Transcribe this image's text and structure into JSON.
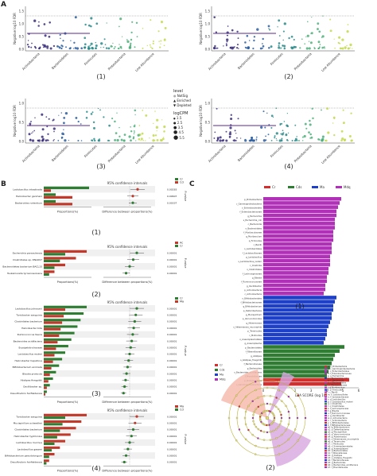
{
  "panel_letters": {
    "a": "A",
    "b": "B",
    "c": "C"
  },
  "manhattan": {
    "ylabel_nlog": "Negative log10 FDR",
    "ylabel_ngl": "Negative log10 FDR",
    "yticks_top": [
      "1.5",
      "1.0",
      "0.5",
      "0.0"
    ],
    "yticks_bottom": [
      "1.0",
      "0.5",
      "0.0"
    ],
    "xcats": [
      "Actinobacteria",
      "Bacteroidetes",
      "Firmicutes",
      "Proteobacteria",
      "Low Abundance"
    ],
    "sublabels": [
      "(1)",
      "(2)",
      "(3)",
      "(4)"
    ],
    "legend": {
      "level_title": "level",
      "levels": [
        "NotSig",
        "Enriched",
        "Depleted"
      ],
      "cpm_title": "logCPM",
      "cpm_values": [
        "1.5",
        "2.5",
        "3.5",
        "4.5",
        "5.5"
      ]
    }
  },
  "stamp": {
    "ci_title": "95% confidence intervals",
    "xlabel_left": "Proportions(%)",
    "xlabel_right": "Difference between proportions(%)",
    "pvalue_label": "P-value",
    "colors": {
      "red": "#c0392b",
      "green": "#2e7d32"
    },
    "plots": [
      {
        "sublabel": "(1)",
        "legend": [
          "Cr",
          "Cd"
        ],
        "features": [
          "Lactobacillus intestinalis",
          "Helicobacter ganmani",
          "Bacteroides rodentium"
        ],
        "pvalues": [
          "0.00283",
          "0.00607",
          "0.00337"
        ]
      },
      {
        "sublabel": "(2)",
        "legend": [
          "Ac",
          "Cr"
        ],
        "features": [
          "Escherichia paraoulensis",
          "Clostridiales sp. DNA097",
          "Bacteroidetes bacterium BACL15",
          "Tsukamurella tyrosinosolvens"
        ],
        "pvalues": [
          "0.00001",
          "0.00001",
          "0.00001",
          "0.00001"
        ]
      },
      {
        "sublabel": "(3)",
        "legend": [
          "Cr",
          "Ma"
        ],
        "features": [
          "Lactobacillus johnsonii",
          "Turicibacter sanguinis",
          "Clostridiales bacterium",
          "Helicobacter bilis",
          "Ruminococcus faecis",
          "Bacteroides acidifaciens",
          "Erysipelotrichaceae",
          "Lactobacillus reuteri",
          "Helicobacter hepaticus",
          "Bifidobacterium animalis",
          "Blautia producta",
          "Alistipes finegoldii",
          "Oscillibacter sp.",
          "Desulfovibrio fairfieldensis"
        ],
        "pvalues": [
          "0.00001",
          "0.00001",
          "0.00001",
          "0.00001",
          "0.00001",
          "0.00001",
          "0.00001",
          "0.00001",
          "0.00001",
          "0.00001",
          "0.00001",
          "0.00001",
          "0.00001",
          "0.00001"
        ]
      },
      {
        "sublabel": "(4)",
        "legend": [
          "Ma",
          "Cd"
        ],
        "features": [
          "Turicibacter sanguinis",
          "Mucispirillum schaedleri",
          "Clostridiales bacterium",
          "Helicobacter typhlonius",
          "Lactobacillus murinus",
          "Lactobacillus gasseri",
          "Bifidobacterium pseudolongum",
          "Desulfovibrio fairfieldensis"
        ],
        "pvalues": [
          "0.00001",
          "0.00001",
          "0.00001",
          "0.00001",
          "0.00001",
          "0.00001",
          "0.00001",
          "0.00001"
        ]
      }
    ]
  },
  "lefse": {
    "legend": [
      "Cr",
      "Cds",
      "Ma",
      "Mdq"
    ],
    "legend_colors": [
      "#d32f2f",
      "#2e7d32",
      "#1e40c8",
      "#b030b8"
    ],
    "xlabel": "LDA SCORE (log 10)",
    "xticks": [
      "0",
      "1",
      "2",
      "3",
      "4",
      "5",
      "6"
    ],
    "sublabel1": "(1)",
    "sublabel2": "(2)",
    "chart_data": {
      "type": "bar",
      "xlabel": "LDA SCORE (log 10)",
      "xlim": [
        0,
        6
      ],
      "bars": [
        {
          "group": "Mdq",
          "value": 4.9
        },
        {
          "group": "Mdq",
          "value": 4.8
        },
        {
          "group": "Mdq",
          "value": 4.7
        },
        {
          "group": "Mdq",
          "value": 4.6
        },
        {
          "group": "Mdq",
          "value": 4.6
        },
        {
          "group": "Mdq",
          "value": 4.5
        },
        {
          "group": "Mdq",
          "value": 4.5
        },
        {
          "group": "Mdq",
          "value": 4.5
        },
        {
          "group": "Mdq",
          "value": 4.4
        },
        {
          "group": "Mdq",
          "value": 4.4
        },
        {
          "group": "Mdq",
          "value": 4.4
        },
        {
          "group": "Mdq",
          "value": 4.3
        },
        {
          "group": "Mdq",
          "value": 4.3
        },
        {
          "group": "Mdq",
          "value": 4.3
        },
        {
          "group": "Mdq",
          "value": 4.2
        },
        {
          "group": "Mdq",
          "value": 4.2
        },
        {
          "group": "Mdq",
          "value": 4.2
        },
        {
          "group": "Mdq",
          "value": 4.1
        },
        {
          "group": "Mdq",
          "value": 4.1
        },
        {
          "group": "Mdq",
          "value": 4.0
        },
        {
          "group": "Mdq",
          "value": 4.0
        },
        {
          "group": "Mdq",
          "value": 3.9
        },
        {
          "group": "Mdq",
          "value": 3.9
        },
        {
          "group": "Mdq",
          "value": 3.8
        },
        {
          "group": "Ma",
          "value": 4.6
        },
        {
          "group": "Ma",
          "value": 4.5
        },
        {
          "group": "Ma",
          "value": 4.4
        },
        {
          "group": "Ma",
          "value": 4.4
        },
        {
          "group": "Ma",
          "value": 4.3
        },
        {
          "group": "Ma",
          "value": 4.3
        },
        {
          "group": "Ma",
          "value": 4.2
        },
        {
          "group": "Ma",
          "value": 4.1
        },
        {
          "group": "Ma",
          "value": 4.0
        },
        {
          "group": "Ma",
          "value": 4.0
        },
        {
          "group": "Ma",
          "value": 3.9
        },
        {
          "group": "Ma",
          "value": 3.8
        },
        {
          "group": "Cds",
          "value": 5.1
        },
        {
          "group": "Cds",
          "value": 4.8
        },
        {
          "group": "Cds",
          "value": 4.5
        },
        {
          "group": "Cds",
          "value": 4.4
        },
        {
          "group": "Cds",
          "value": 4.3
        },
        {
          "group": "Cds",
          "value": 4.2
        },
        {
          "group": "Cds",
          "value": 4.1
        },
        {
          "group": "Cds",
          "value": 4.0
        },
        {
          "group": "Cr",
          "value": 5.4
        },
        {
          "group": "Cr",
          "value": 4.9
        }
      ]
    },
    "clado_legend": [
      "a: p_Proteobacteria",
      "b: c_Gammaproteobacteria",
      "c: o_Enterobacterales",
      "d: f_Enterobacteriaceae",
      "e: g_Escherichia",
      "f: s_Escherichia_coli",
      "g: c_Bacteroidia",
      "h: o_Bacteroidales",
      "i: f_Muribaculaceae",
      "j: g_Muribaculum",
      "k: p_Firmicutes",
      "l: c_Bacilli",
      "m: o_Lactobacillales",
      "n: f_Lactobacillaceae",
      "o: g_Lactobacillus",
      "p: s_Lactobacillus_reuteri",
      "q: c_Clostridia",
      "r: o_Clostridiales",
      "s: f_Lachnospiraceae",
      "t: g_Blautia",
      "u: f_Ruminococcaceae",
      "v: g_Oscillibacter",
      "w: p_Actinobacteria",
      "x: c_Actinobacteria",
      "y: o_Bifidobacteriales",
      "z: f_Bifidobacteriaceae",
      "a0: g_Bifidobacterium",
      "a1: p_Deferribacteres",
      "a2: g_Mucispirillum",
      "a3: p_Verrucomicrobia",
      "a4: g_Akkermansia",
      "a5: s_Akkermansia_muciniphila",
      "a6: p_Tenericutes",
      "a7: c_Mollicutes",
      "a8: o_Anaeroplasmatales",
      "a9: g_Anaeroplasma",
      "b0: p_Bacteroidetes",
      "b1: f_Rikenellaceae",
      "b2: g_Alistipes",
      "b3: s_Alistipes_finegoldii",
      "b4: f_Bacteroidaceae",
      "b5: g_Bacteroides",
      "b6: s_Bacteroides_acidifaciens",
      "b7: f_Prevotellaceae"
    ]
  }
}
